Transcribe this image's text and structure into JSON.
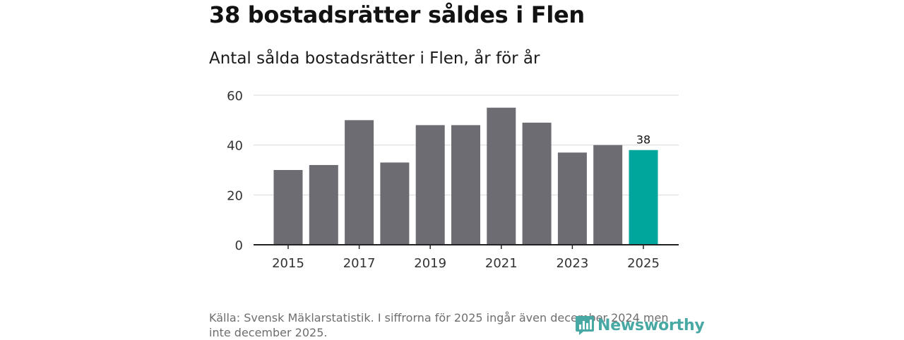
{
  "header": {
    "title": "38 bostadsrätter såldes i Flen",
    "subtitle": "Antal sålda bostadsrätter i Flen, år för år"
  },
  "footer": {
    "source": "Källa: Svensk Mäklarstatistik. I siffrorna för 2025 ingår även december 2024 men inte december 2025.",
    "brand": "Newsworthy"
  },
  "colors": {
    "bar": "#6d6c72",
    "highlight": "#00a69c",
    "grid": "#d9d9d9",
    "axis": "#222222",
    "brand": "#48a8a3"
  },
  "chart_data": {
    "type": "bar",
    "title": "Antal sålda bostadsrätter i Flen, år för år",
    "xlabel": "",
    "ylabel": "",
    "categories": [
      "2015",
      "2016",
      "2017",
      "2018",
      "2019",
      "2020",
      "2021",
      "2022",
      "2023",
      "2024",
      "2025"
    ],
    "values": [
      30,
      32,
      50,
      33,
      48,
      48,
      55,
      49,
      37,
      40,
      38
    ],
    "highlight_index": 10,
    "data_labels": [
      {
        "index": 10,
        "text": "38"
      }
    ],
    "x_tick_labels": [
      "2015",
      "2017",
      "2019",
      "2021",
      "2023",
      "2025"
    ],
    "y_ticks": [
      0,
      20,
      40,
      60
    ],
    "ylim": [
      0,
      60
    ],
    "grid": true,
    "legend": "none"
  }
}
